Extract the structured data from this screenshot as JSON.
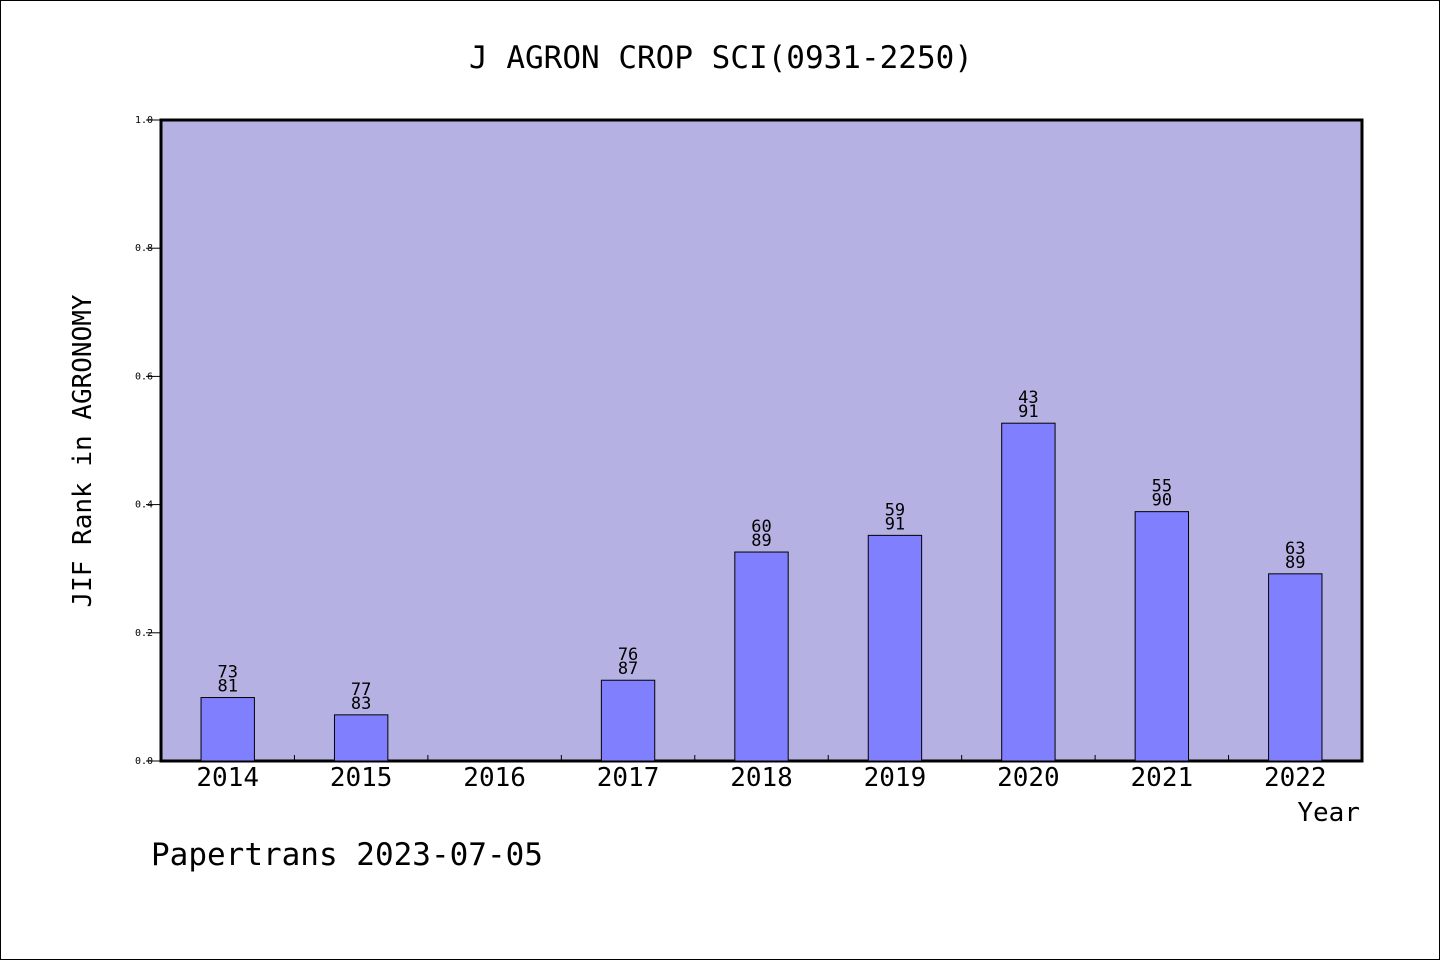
{
  "chart_data": {
    "type": "bar",
    "title": "J AGRON CROP SCI(0931-2250)",
    "xlabel": "Year",
    "ylabel": "JIF Rank in AGRONOMY",
    "footer": "Papertrans 2023-07-05",
    "ylim": [
      0,
      1.0
    ],
    "yticks": [
      "0.0",
      "0.2",
      "0.4",
      "0.6",
      "0.8",
      "1.0"
    ],
    "categories": [
      "2014",
      "2015",
      "2016",
      "2017",
      "2018",
      "2019",
      "2020",
      "2021",
      "2022"
    ],
    "values": [
      0.099,
      0.072,
      null,
      0.126,
      0.326,
      0.352,
      0.527,
      0.389,
      0.292
    ],
    "labels_top": [
      "73",
      "77",
      "",
      "76",
      "60",
      "59",
      "43",
      "55",
      "63"
    ],
    "labels_bottom": [
      "81",
      "83",
      "",
      "87",
      "89",
      "91",
      "91",
      "90",
      "89"
    ],
    "grid": false,
    "legend": "none",
    "colors": {
      "plot_background": "#b6b1e3",
      "bar_fill": "#8080ff",
      "bar_stroke": "#000000",
      "axis": "#000000",
      "text": "#000000"
    }
  }
}
